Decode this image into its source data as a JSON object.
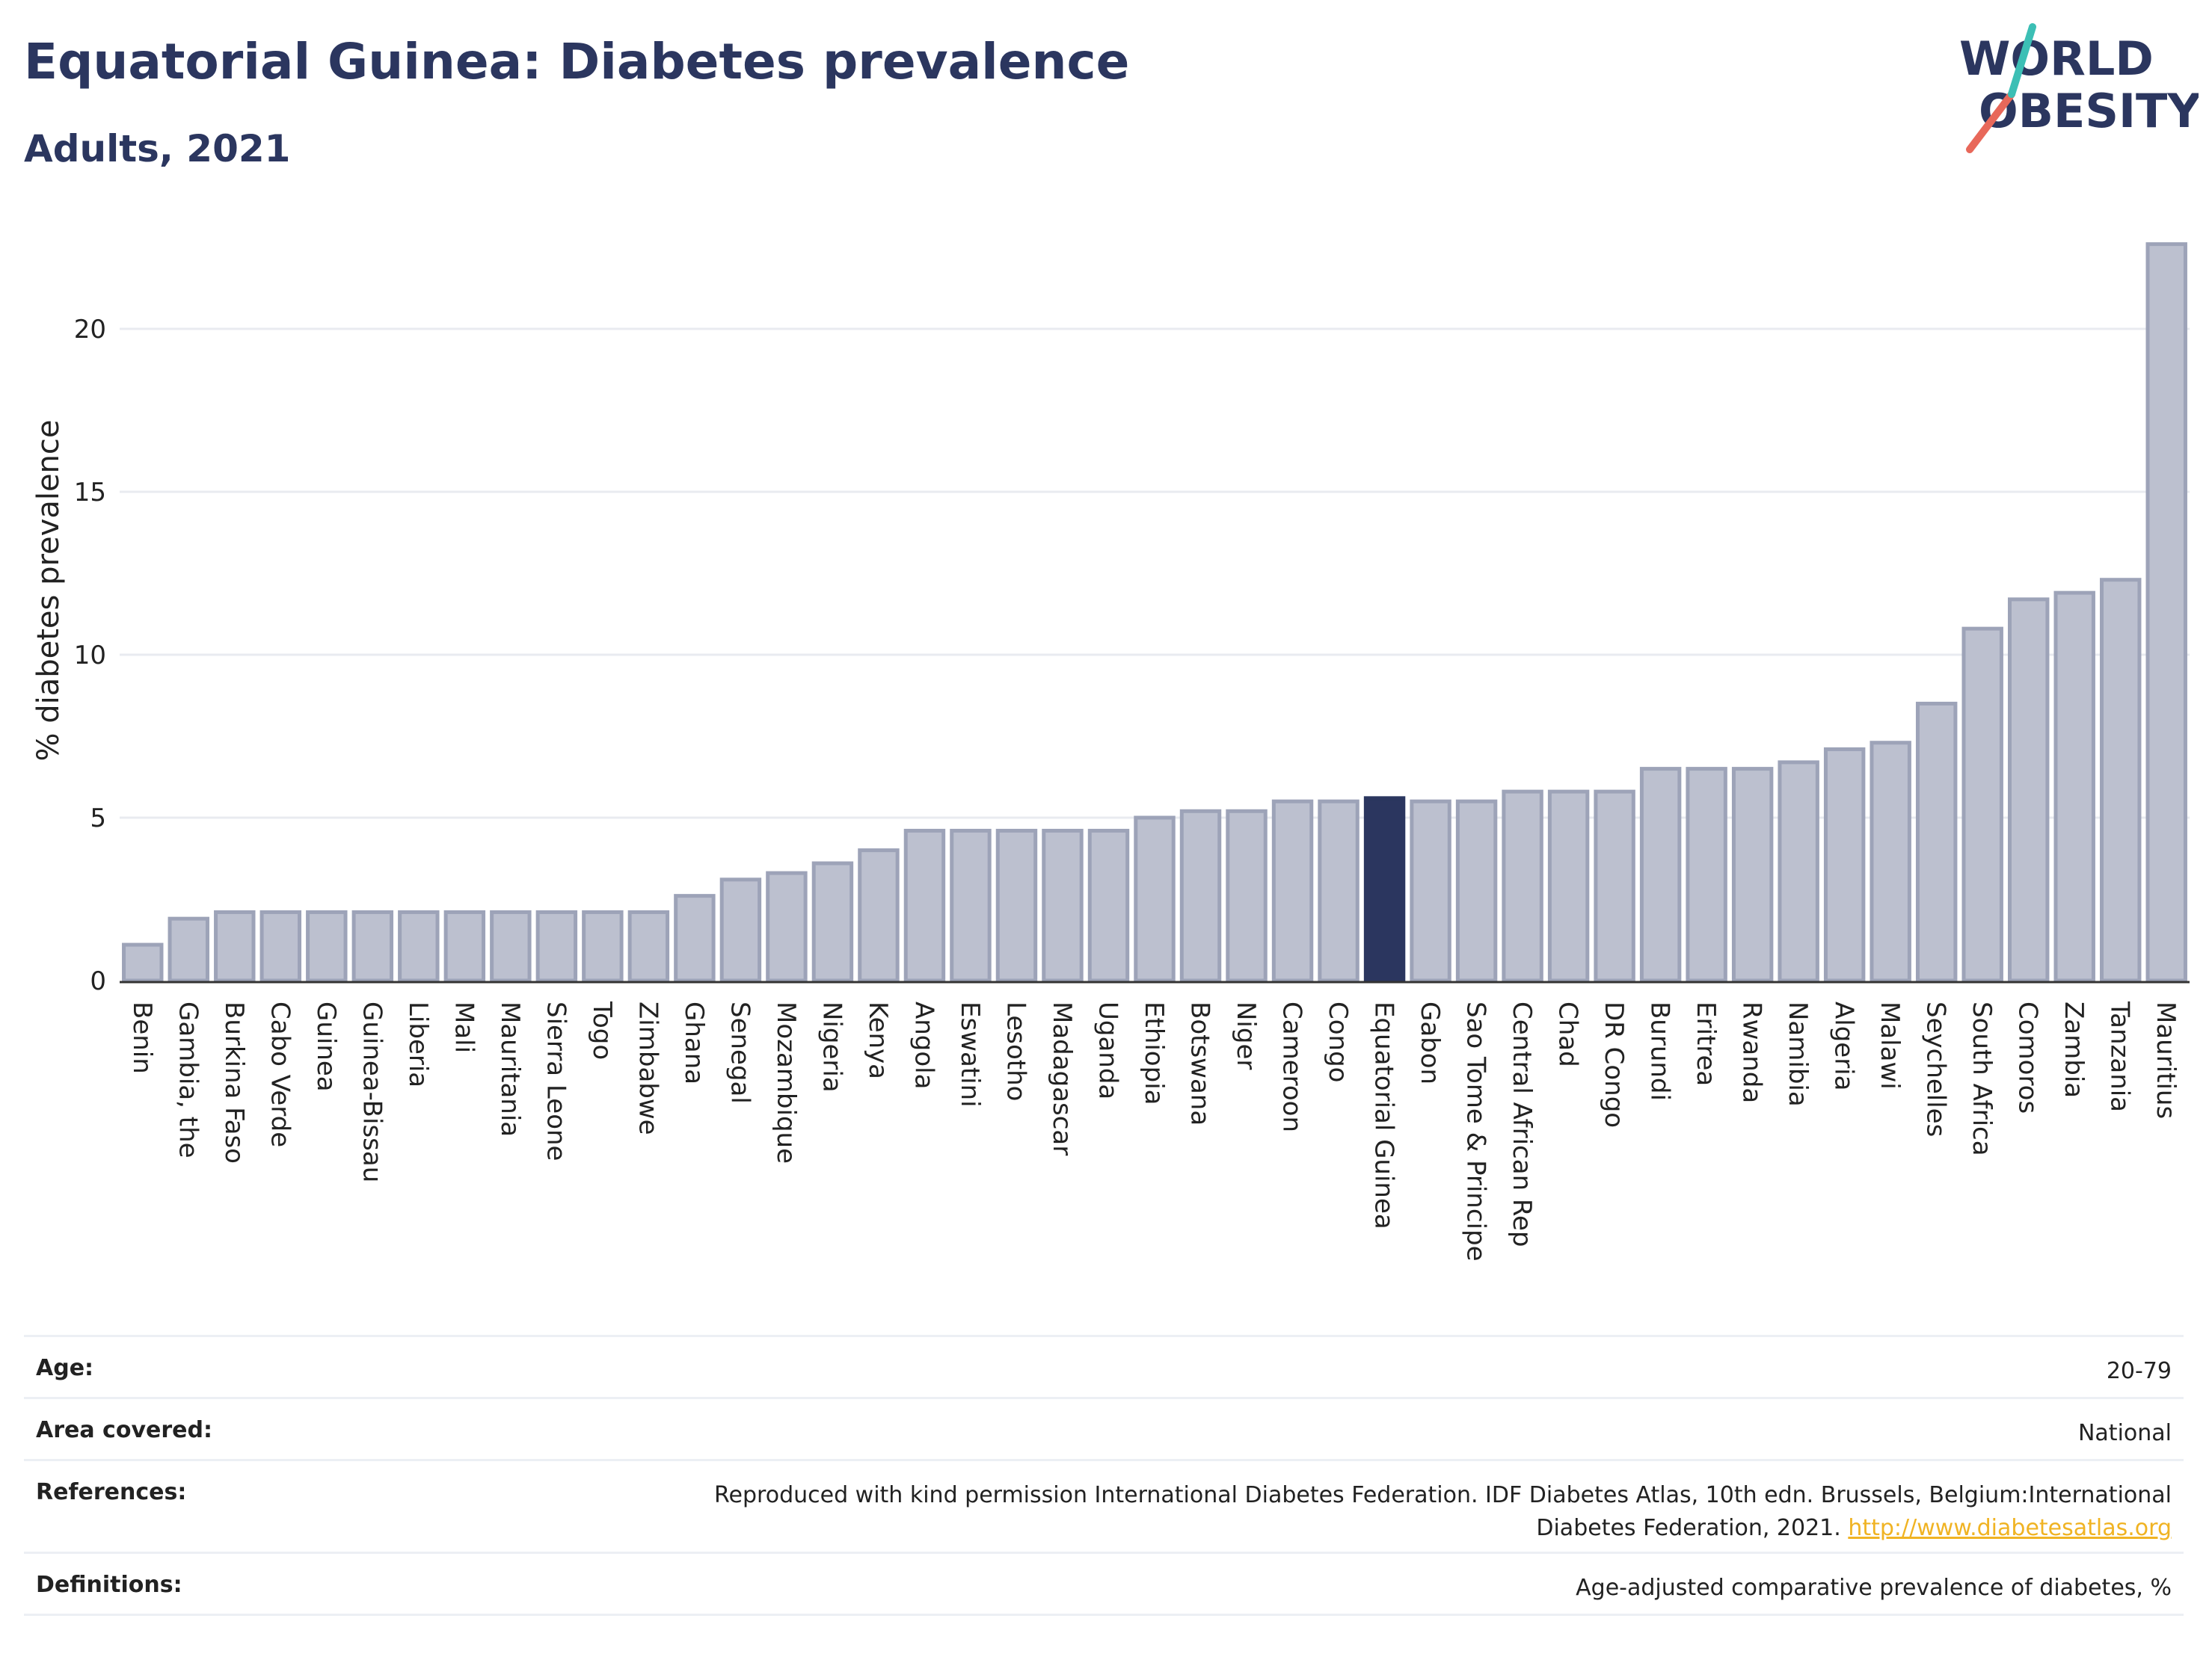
{
  "header": {
    "title": "Equatorial Guinea: Diabetes prevalence",
    "subtitle": "Adults, 2021"
  },
  "logo": {
    "line1": "WORLD",
    "line2": "OBESITY",
    "text_color": "#2b365f",
    "slash_colors": [
      "#e8685a",
      "#3cbfb5"
    ]
  },
  "colors": {
    "bar_fill": "#bcc0cf",
    "bar_stroke": "#9da3b8",
    "highlight": "#2b365f",
    "grid": "#e9ebf0",
    "axis": "#333333"
  },
  "chart_data": {
    "type": "bar",
    "title": "Equatorial Guinea: Diabetes prevalence",
    "subtitle": "Adults, 2021",
    "ylabel": "% diabetes prevalence",
    "xlabel": "",
    "ylim": [
      0,
      23
    ],
    "yticks": [
      0,
      5,
      10,
      15,
      20
    ],
    "grid": true,
    "highlight": "Equatorial Guinea",
    "categories": [
      "Benin",
      "Gambia, the",
      "Burkina Faso",
      "Cabo Verde",
      "Guinea",
      "Guinea-Bissau",
      "Liberia",
      "Mali",
      "Mauritania",
      "Sierra Leone",
      "Togo",
      "Zimbabwe",
      "Ghana",
      "Senegal",
      "Mozambique",
      "Nigeria",
      "Kenya",
      "Angola",
      "Eswatini",
      "Lesotho",
      "Madagascar",
      "Uganda",
      "Ethiopia",
      "Botswana",
      "Niger",
      "Cameroon",
      "Congo",
      "Equatorial Guinea",
      "Gabon",
      "Sao Tome & Principe",
      "Central African Rep",
      "Chad",
      "DR Congo",
      "Burundi",
      "Eritrea",
      "Rwanda",
      "Namibia",
      "Algeria",
      "Malawi",
      "Seychelles",
      "South Africa",
      "Comoros",
      "Zambia",
      "Tanzania",
      "Mauritius"
    ],
    "values": [
      1.1,
      1.9,
      2.1,
      2.1,
      2.1,
      2.1,
      2.1,
      2.1,
      2.1,
      2.1,
      2.1,
      2.1,
      2.6,
      3.1,
      3.3,
      3.6,
      4.0,
      4.6,
      4.6,
      4.6,
      4.6,
      4.6,
      5.0,
      5.2,
      5.2,
      5.5,
      5.5,
      5.6,
      5.5,
      5.5,
      5.8,
      5.8,
      5.8,
      6.5,
      6.5,
      6.5,
      6.7,
      7.1,
      7.3,
      8.5,
      10.8,
      11.7,
      11.9,
      12.3,
      22.6
    ]
  },
  "meta": [
    {
      "label": "Age:",
      "value": "20-79"
    },
    {
      "label": "Area covered:",
      "value": "National"
    },
    {
      "label": "References:",
      "value": "Reproduced with kind permission International Diabetes Federation.  IDF Diabetes Atlas, 10th edn. Brussels, Belgium:International Diabetes Federation, 2021.",
      "link": "http://www.diabetesatlas.org"
    },
    {
      "label": "Definitions:",
      "value": "Age-adjusted comparative prevalence of diabetes, %"
    }
  ]
}
